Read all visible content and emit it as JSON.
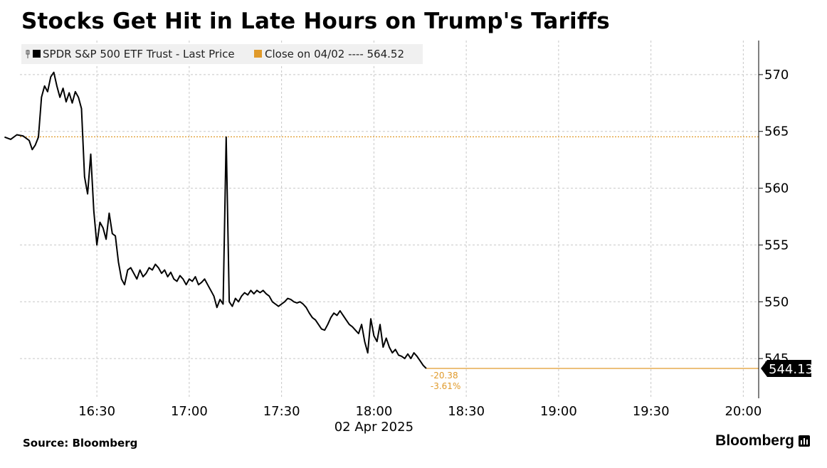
{
  "title": "Stocks Get Hit in Late Hours on Trump's Tariffs",
  "source": "Source: Bloomberg",
  "brand": "Bloomberg",
  "colors": {
    "line": "#000000",
    "close": "#e09a2a",
    "grid": "#c8c8c8",
    "legend_bg": "#f0f0f0"
  },
  "chart_data": {
    "type": "line",
    "x_axis": {
      "ticks": [
        "16:30",
        "17:00",
        "17:30",
        "18:00",
        "18:30",
        "19:00",
        "19:30",
        "20:00"
      ],
      "date_label": "02 Apr 2025",
      "range": [
        "16:05",
        "20:05"
      ]
    },
    "y_axis": {
      "ticks": [
        545,
        550,
        555,
        560,
        565,
        570
      ],
      "range": [
        541.5,
        573
      ],
      "side": "right"
    },
    "legend": {
      "placement": "top-left",
      "entries": [
        {
          "label": "SPDR S&P 500 ETF Trust - Last Price",
          "color": "#000000"
        },
        {
          "label": "Close on 04/02 ---- 564.52",
          "color": "#e09a2a"
        }
      ]
    },
    "close": {
      "label": "Close on 04/02",
      "value": 564.52
    },
    "last_value_label": "544.13",
    "annotation": {
      "change": "-20.38",
      "pct": "-3.61%",
      "at": "18:17"
    },
    "series": [
      {
        "values": [
          [
            "16:00",
            564.5
          ],
          [
            "16:02",
            564.3
          ],
          [
            "16:04",
            564.7
          ],
          [
            "16:06",
            564.6
          ],
          [
            "16:08",
            564.2
          ],
          [
            "16:09",
            563.4
          ],
          [
            "16:10",
            563.8
          ],
          [
            "16:11",
            564.5
          ],
          [
            "16:12",
            568.0
          ],
          [
            "16:13",
            569.0
          ],
          [
            "16:14",
            568.5
          ],
          [
            "16:15",
            569.8
          ],
          [
            "16:16",
            570.2
          ],
          [
            "16:17",
            569.0
          ],
          [
            "16:18",
            568.0
          ],
          [
            "16:19",
            568.8
          ],
          [
            "16:20",
            567.6
          ],
          [
            "16:21",
            568.4
          ],
          [
            "16:22",
            567.5
          ],
          [
            "16:23",
            568.5
          ],
          [
            "16:24",
            568.0
          ],
          [
            "16:25",
            567.0
          ],
          [
            "16:26",
            561.0
          ],
          [
            "16:27",
            559.5
          ],
          [
            "16:28",
            563.0
          ],
          [
            "16:29",
            558.0
          ],
          [
            "16:30",
            555.0
          ],
          [
            "16:31",
            557.0
          ],
          [
            "16:32",
            556.5
          ],
          [
            "16:33",
            555.5
          ],
          [
            "16:34",
            557.8
          ],
          [
            "16:35",
            556.0
          ],
          [
            "16:36",
            555.8
          ],
          [
            "16:37",
            553.5
          ],
          [
            "16:38",
            552.0
          ],
          [
            "16:39",
            551.5
          ],
          [
            "16:40",
            552.8
          ],
          [
            "16:41",
            553.0
          ],
          [
            "16:42",
            552.5
          ],
          [
            "16:43",
            552.0
          ],
          [
            "16:44",
            552.8
          ],
          [
            "16:45",
            552.2
          ],
          [
            "16:46",
            552.5
          ],
          [
            "16:47",
            553.0
          ],
          [
            "16:48",
            552.8
          ],
          [
            "16:49",
            553.3
          ],
          [
            "16:50",
            553.0
          ],
          [
            "16:51",
            552.5
          ],
          [
            "16:52",
            552.8
          ],
          [
            "16:53",
            552.2
          ],
          [
            "16:54",
            552.6
          ],
          [
            "16:55",
            552.0
          ],
          [
            "16:56",
            551.8
          ],
          [
            "16:57",
            552.3
          ],
          [
            "16:58",
            552.0
          ],
          [
            "16:59",
            551.5
          ],
          [
            "17:00",
            552.0
          ],
          [
            "17:01",
            551.8
          ],
          [
            "17:02",
            552.2
          ],
          [
            "17:03",
            551.5
          ],
          [
            "17:04",
            551.7
          ],
          [
            "17:05",
            552.0
          ],
          [
            "17:06",
            551.5
          ],
          [
            "17:07",
            551.0
          ],
          [
            "17:08",
            550.5
          ],
          [
            "17:09",
            549.5
          ],
          [
            "17:10",
            550.2
          ],
          [
            "17:11",
            549.8
          ],
          [
            "17:12",
            564.5
          ],
          [
            "17:13",
            550.0
          ],
          [
            "17:14",
            549.6
          ],
          [
            "17:15",
            550.3
          ],
          [
            "17:16",
            550.0
          ],
          [
            "17:17",
            550.5
          ],
          [
            "17:18",
            550.8
          ],
          [
            "17:19",
            550.6
          ],
          [
            "17:20",
            551.0
          ],
          [
            "17:21",
            550.7
          ],
          [
            "17:22",
            551.0
          ],
          [
            "17:23",
            550.8
          ],
          [
            "17:24",
            551.0
          ],
          [
            "17:25",
            550.7
          ],
          [
            "17:26",
            550.5
          ],
          [
            "17:27",
            550.0
          ],
          [
            "17:28",
            549.8
          ],
          [
            "17:29",
            549.6
          ],
          [
            "17:30",
            549.8
          ],
          [
            "17:31",
            550.0
          ],
          [
            "17:32",
            550.3
          ],
          [
            "17:33",
            550.2
          ],
          [
            "17:34",
            550.0
          ],
          [
            "17:35",
            549.9
          ],
          [
            "17:36",
            550.0
          ],
          [
            "17:37",
            549.8
          ],
          [
            "17:38",
            549.5
          ],
          [
            "17:39",
            549.0
          ],
          [
            "17:40",
            548.6
          ],
          [
            "17:41",
            548.4
          ],
          [
            "17:42",
            548.0
          ],
          [
            "17:43",
            547.6
          ],
          [
            "17:44",
            547.5
          ],
          [
            "17:45",
            548.0
          ],
          [
            "17:46",
            548.6
          ],
          [
            "17:47",
            549.0
          ],
          [
            "17:48",
            548.8
          ],
          [
            "17:49",
            549.2
          ],
          [
            "17:50",
            548.8
          ],
          [
            "17:51",
            548.4
          ],
          [
            "17:52",
            548.0
          ],
          [
            "17:53",
            547.8
          ],
          [
            "17:54",
            547.5
          ],
          [
            "17:55",
            547.2
          ],
          [
            "17:56",
            548.0
          ],
          [
            "17:57",
            546.5
          ],
          [
            "17:58",
            545.5
          ],
          [
            "17:59",
            548.5
          ],
          [
            "18:00",
            547.0
          ],
          [
            "18:01",
            546.5
          ],
          [
            "18:02",
            548.0
          ],
          [
            "18:03",
            546.0
          ],
          [
            "18:04",
            546.8
          ],
          [
            "18:05",
            546.0
          ],
          [
            "18:06",
            545.5
          ],
          [
            "18:07",
            545.8
          ],
          [
            "18:08",
            545.3
          ],
          [
            "18:09",
            545.2
          ],
          [
            "18:10",
            545.0
          ],
          [
            "18:11",
            545.4
          ],
          [
            "18:12",
            545.0
          ],
          [
            "18:13",
            545.5
          ],
          [
            "18:14",
            545.2
          ],
          [
            "18:15",
            544.8
          ],
          [
            "18:16",
            544.4
          ],
          [
            "18:17",
            544.13
          ]
        ]
      }
    ]
  }
}
